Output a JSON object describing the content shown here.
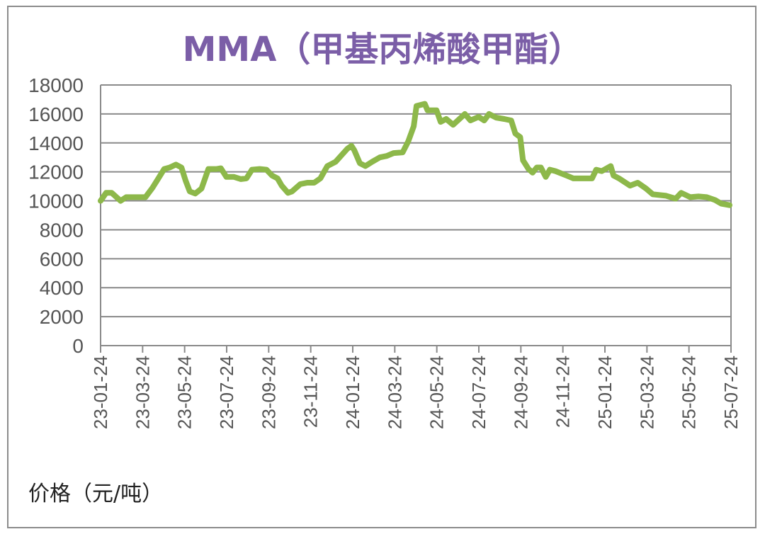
{
  "chart_data": {
    "type": "line",
    "title": "MMA（甲基丙烯酸甲酯）",
    "ylabel": "价格（元/吨）",
    "xlabel": "",
    "ylim": [
      0,
      18000
    ],
    "yticks": [
      0,
      2000,
      4000,
      6000,
      8000,
      10000,
      12000,
      14000,
      16000,
      18000
    ],
    "xlim": [
      "2023-01-24",
      "2025-07-24"
    ],
    "xtick_labels": [
      "23-01-24",
      "23-03-24",
      "23-05-24",
      "23-07-24",
      "23-09-24",
      "23-11-24",
      "24-01-24",
      "24-03-24",
      "24-05-24",
      "24-07-24",
      "24-09-24",
      "24-11-24",
      "25-01-24",
      "25-03-24",
      "25-05-24",
      "25-07-24"
    ],
    "grid": "horizontal",
    "line_color": "#8db84a",
    "title_color": "#7b5ea7",
    "series": [
      {
        "x": [
          "2023-01-24",
          "2023-02-01",
          "2023-02-09",
          "2023-02-22",
          "2023-03-02",
          "2023-03-14",
          "2023-03-30",
          "2023-04-09",
          "2023-04-19",
          "2023-04-26",
          "2023-05-04",
          "2023-05-13",
          "2023-05-21",
          "2023-05-27",
          "2023-06-02",
          "2023-06-10",
          "2023-06-19",
          "2023-06-29",
          "2023-07-11",
          "2023-07-17",
          "2023-07-25",
          "2023-08-05",
          "2023-08-15",
          "2023-08-23",
          "2023-08-31",
          "2023-09-11",
          "2023-09-21",
          "2023-09-29",
          "2023-10-07",
          "2023-10-13",
          "2023-10-22",
          "2023-10-28",
          "2023-11-09",
          "2023-11-19",
          "2023-11-29",
          "2023-12-08",
          "2023-12-18",
          "2023-12-30",
          "2024-01-16",
          "2024-01-22",
          "2024-01-26",
          "2024-02-03",
          "2024-02-11",
          "2024-02-21",
          "2024-03-03",
          "2024-03-13",
          "2024-03-23",
          "2024-04-05",
          "2024-04-13",
          "2024-04-21",
          "2024-04-25",
          "2024-05-07",
          "2024-05-11",
          "2024-05-24",
          "2024-05-30",
          "2024-06-07",
          "2024-06-17",
          "2024-07-04",
          "2024-07-12",
          "2024-07-24",
          "2024-08-01",
          "2024-08-08",
          "2024-08-18",
          "2024-08-30",
          "2024-09-09",
          "2024-09-15",
          "2024-09-22",
          "2024-09-26",
          "2024-10-04",
          "2024-10-10",
          "2024-10-16",
          "2024-10-22",
          "2024-10-29",
          "2024-11-04",
          "2024-11-12",
          "2024-11-28",
          "2024-12-08",
          "2024-12-19",
          "2025-01-04",
          "2025-01-10",
          "2025-01-18",
          "2025-01-31",
          "2025-02-04",
          "2025-02-12",
          "2025-02-28",
          "2025-03-11",
          "2025-03-23",
          "2025-04-02",
          "2025-04-21",
          "2025-05-05",
          "2025-05-13",
          "2025-05-26",
          "2025-06-07",
          "2025-06-19",
          "2025-07-01",
          "2025-07-10",
          "2025-07-22"
        ],
        "values": [
          10000,
          10550,
          10550,
          10000,
          10250,
          10250,
          10250,
          10900,
          11650,
          12200,
          12300,
          12500,
          12300,
          11400,
          10650,
          10500,
          10850,
          12200,
          12200,
          12250,
          11650,
          11650,
          11500,
          11550,
          12150,
          12200,
          12150,
          11750,
          11550,
          11050,
          10550,
          10650,
          11150,
          11250,
          11250,
          11550,
          12400,
          12700,
          13600,
          13800,
          13500,
          12600,
          12400,
          12700,
          13000,
          13100,
          13300,
          13350,
          14100,
          15150,
          16550,
          16700,
          16250,
          16250,
          15450,
          15650,
          15250,
          16000,
          15550,
          15800,
          15550,
          16000,
          15750,
          15650,
          15550,
          14650,
          14400,
          12800,
          12200,
          11950,
          12300,
          12300,
          11650,
          12150,
          12050,
          11750,
          11550,
          11550,
          11550,
          12150,
          12050,
          12400,
          11750,
          11550,
          11050,
          11250,
          10850,
          10450,
          10350,
          10150,
          10550,
          10250,
          10300,
          10250,
          10050,
          9800,
          9700
        ]
      }
    ]
  }
}
